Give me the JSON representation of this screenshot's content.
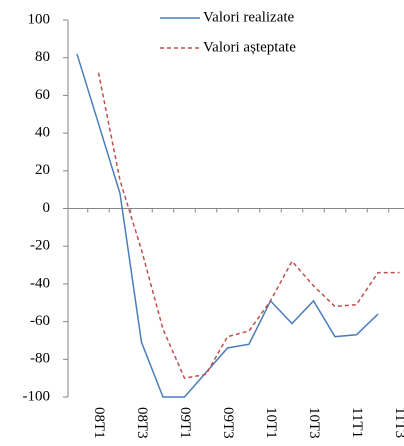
{
  "chart_data": {
    "type": "line",
    "categories": [
      null,
      "08T1",
      null,
      "08T3",
      null,
      "09T1",
      null,
      "09T3",
      null,
      "10T1",
      null,
      "10T3",
      null,
      "11T1",
      null,
      "11T3"
    ],
    "series": [
      {
        "name": "Valori realizate",
        "color": "#4a7ebb",
        "dash": false,
        "values": [
          82,
          45,
          8,
          -71,
          -100,
          -100,
          -87,
          -74,
          -72,
          -49,
          -61,
          -49,
          -68,
          -67,
          -56,
          null
        ]
      },
      {
        "name": "Valori așteptate",
        "color": "#c0504d",
        "dash": true,
        "values": [
          null,
          72,
          15,
          -22,
          -64,
          -90,
          -88,
          -68,
          -65,
          -49,
          -28,
          -41,
          -52,
          -51,
          -34,
          -34
        ]
      }
    ],
    "ylim": [
      -100,
      100
    ],
    "yticks": [
      -100,
      -80,
      -60,
      -40,
      -20,
      0,
      20,
      40,
      60,
      80,
      100
    ],
    "legend": "top-right"
  }
}
